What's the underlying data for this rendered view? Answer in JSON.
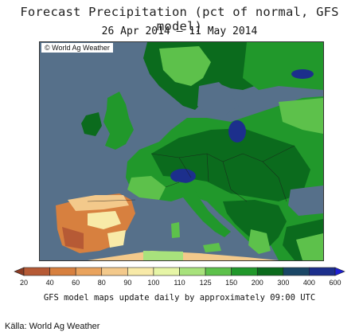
{
  "title": "Forecast Precipitation (pct of normal, GFS model)",
  "date_range": "26 Apr 2014 — 11 May 2014",
  "copyright": "© World Ag Weather",
  "legend": {
    "colors": [
      "#8a3b24",
      "#b65a35",
      "#d7803f",
      "#e9a35d",
      "#f3c98b",
      "#f8eaa8",
      "#e6f5a6",
      "#a8e27c",
      "#5dc14b",
      "#21982b",
      "#0b6b1d",
      "#1a4766",
      "#1c2f8c",
      "#1e20d2"
    ],
    "labels": [
      "20",
      "40",
      "60",
      "80",
      "90",
      "100",
      "110",
      "125",
      "150",
      "200",
      "300",
      "400",
      "600"
    ]
  },
  "note": "GFS model maps update daily by approximately 09:00 UTC",
  "source": "Källa: World Ag Weather",
  "map_colors": {
    "sea": "#56708a",
    "dark_green": "#0b6b1d",
    "green": "#21982b",
    "light_green": "#5dc14b",
    "pale_green": "#a8e27c",
    "yellow": "#f3c98b",
    "orange": "#d7803f",
    "dark_orange": "#b65a35",
    "navy": "#1c2f8c"
  }
}
